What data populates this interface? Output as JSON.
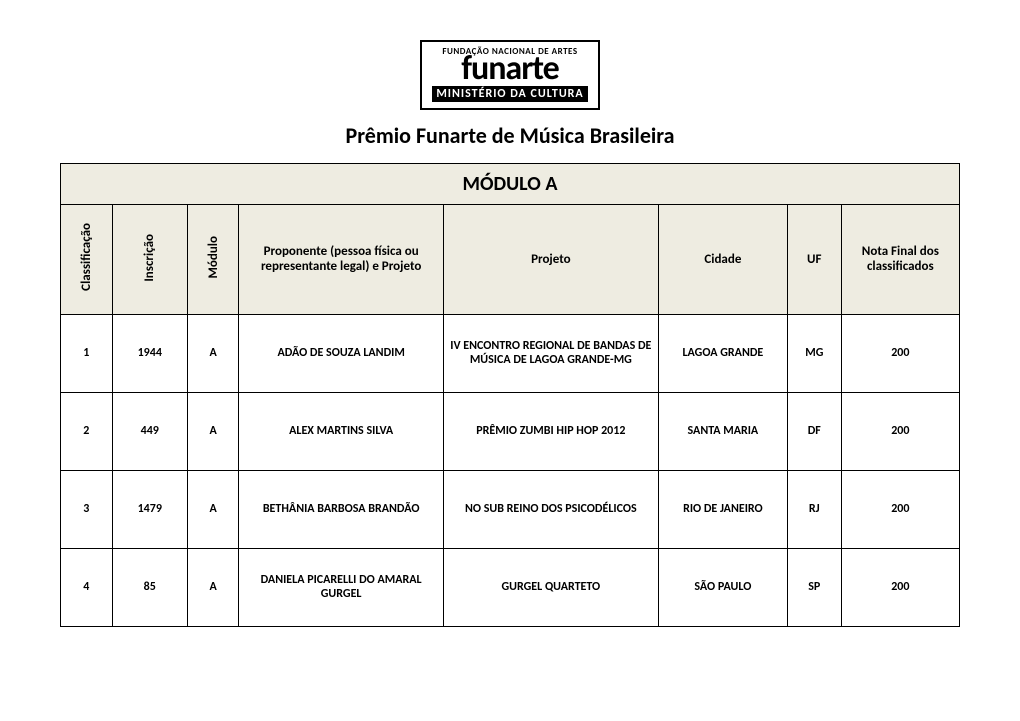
{
  "logo": {
    "top": "FUNDAÇÃO NACIONAL DE ARTES",
    "main": "funarte",
    "sub": "MINISTÉRIO DA CULTURA"
  },
  "title": "Prêmio Funarte de Música Brasileira",
  "module_header": "MÓDULO A",
  "columns": {
    "classificacao": "Classificação",
    "inscricao": "Inscrição",
    "modulo": "Módulo",
    "proponente": "Proponente  (pessoa física ou representante legal) e Projeto",
    "projeto": "Projeto",
    "cidade": "Cidade",
    "uf": "UF",
    "nota": "Nota Final dos classificados"
  },
  "rows": [
    {
      "classificacao": "1",
      "inscricao": "1944",
      "modulo": "A",
      "proponente": "ADÃO DE SOUZA LANDIM",
      "projeto": "IV ENCONTRO REGIONAL DE BANDAS DE MÚSICA DE LAGOA GRANDE-MG",
      "cidade": "LAGOA GRANDE",
      "uf": "MG",
      "nota": "200"
    },
    {
      "classificacao": "2",
      "inscricao": "449",
      "modulo": "A",
      "proponente": "ALEX MARTINS SILVA",
      "projeto": "PRÊMIO ZUMBI HIP HOP 2012",
      "cidade": "SANTA MARIA",
      "uf": "DF",
      "nota": "200"
    },
    {
      "classificacao": "3",
      "inscricao": "1479",
      "modulo": "A",
      "proponente": "BETHÂNIA BARBOSA BRANDÃO",
      "projeto": "NO SUB REINO DOS PSICODÉLICOS",
      "cidade": "RIO DE JANEIRO",
      "uf": "RJ",
      "nota": "200"
    },
    {
      "classificacao": "4",
      "inscricao": "85",
      "modulo": "A",
      "proponente": "DANIELA PICARELLI DO AMARAL GURGEL",
      "projeto": "GURGEL QUARTETO",
      "cidade": "SÃO PAULO",
      "uf": "SP",
      "nota": "200"
    }
  ],
  "style": {
    "header_bg": "#eeece1",
    "border_color": "#000000",
    "page_bg": "#ffffff",
    "font_family": "Calibri, Arial, sans-serif"
  }
}
